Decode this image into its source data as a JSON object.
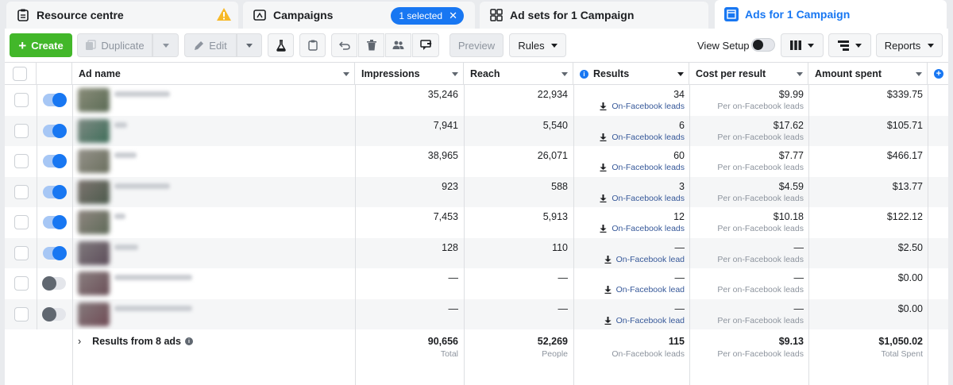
{
  "tabs": {
    "resource_centre": "Resource centre",
    "campaigns": "Campaigns",
    "selected_pill": "1 selected",
    "ad_sets": "Ad sets for 1 Campaign",
    "ads": "Ads for 1 Campaign"
  },
  "toolbar": {
    "create": "Create",
    "duplicate": "Duplicate",
    "edit": "Edit",
    "preview": "Preview",
    "rules": "Rules",
    "view_setup": "View Setup",
    "reports": "Reports"
  },
  "columns": {
    "ad_name": "Ad name",
    "impressions": "Impressions",
    "reach": "Reach",
    "results": "Results",
    "cost_per_result": "Cost per result",
    "amount_spent": "Amount spent"
  },
  "rows": [
    {
      "active": true,
      "impressions": "35,246",
      "reach": "22,934",
      "results": "34",
      "result_type": "On-Facebook leads",
      "cost": "$9.99",
      "cost_sub": "Per on-Facebook leads",
      "spent": "$339.75"
    },
    {
      "active": true,
      "impressions": "7,941",
      "reach": "5,540",
      "results": "6",
      "result_type": "On-Facebook leads",
      "cost": "$17.62",
      "cost_sub": "Per on-Facebook leads",
      "spent": "$105.71"
    },
    {
      "active": true,
      "impressions": "38,965",
      "reach": "26,071",
      "results": "60",
      "result_type": "On-Facebook leads",
      "cost": "$7.77",
      "cost_sub": "Per on-Facebook leads",
      "spent": "$466.17"
    },
    {
      "active": true,
      "impressions": "923",
      "reach": "588",
      "results": "3",
      "result_type": "On-Facebook leads",
      "cost": "$4.59",
      "cost_sub": "Per on-Facebook leads",
      "spent": "$13.77"
    },
    {
      "active": true,
      "impressions": "7,453",
      "reach": "5,913",
      "results": "12",
      "result_type": "On-Facebook leads",
      "cost": "$10.18",
      "cost_sub": "Per on-Facebook leads",
      "spent": "$122.12"
    },
    {
      "active": true,
      "impressions": "128",
      "reach": "110",
      "results": "—",
      "result_type": "On-Facebook lead",
      "cost": "—",
      "cost_sub": "Per on-Facebook leads",
      "spent": "$2.50"
    },
    {
      "active": false,
      "impressions": "—",
      "reach": "—",
      "results": "—",
      "result_type": "On-Facebook lead",
      "cost": "—",
      "cost_sub": "Per on-Facebook leads",
      "spent": "$0.00"
    },
    {
      "active": false,
      "impressions": "—",
      "reach": "—",
      "results": "—",
      "result_type": "On-Facebook lead",
      "cost": "—",
      "cost_sub": "Per on-Facebook leads",
      "spent": "$0.00"
    }
  ],
  "summary": {
    "label": "Results from 8 ads",
    "impressions": "90,656",
    "impressions_sub": "Total",
    "reach": "52,269",
    "reach_sub": "People",
    "results": "115",
    "results_sub": "On-Facebook leads",
    "cost": "$9.13",
    "cost_sub": "Per on-Facebook leads",
    "spent": "$1,050.02",
    "spent_sub": "Total Spent"
  },
  "colors": {
    "accent": "#1877f2",
    "create": "#42b72a",
    "warning": "#f7b928"
  }
}
